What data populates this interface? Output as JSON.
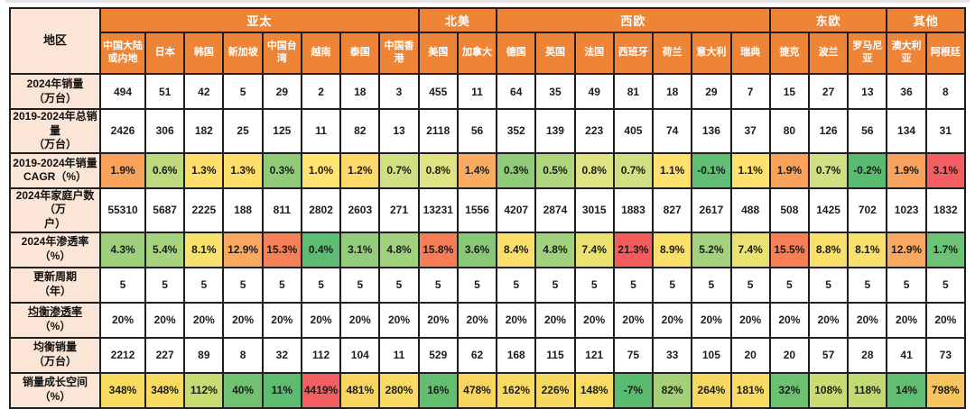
{
  "colors": {
    "header_bg": "#EE8435",
    "row_header_bg": "#FBE5D6",
    "border": "#1F1F1F",
    "header_text": "#FFFFFF",
    "cell_text": "#1C1C1C",
    "page_bg": "#FFFFFF"
  },
  "corner_label": "地区",
  "chart_data": {
    "type": "table",
    "title": "",
    "column_groups": [
      {
        "label": "亚太",
        "span": 8
      },
      {
        "label": "北美",
        "span": 2
      },
      {
        "label": "西欧",
        "span": 7
      },
      {
        "label": "东欧",
        "span": 3
      },
      {
        "label": "其他",
        "span": 2
      }
    ],
    "columns": [
      "中国大陆或内地",
      "日本",
      "韩国",
      "新加坡",
      "中国台湾",
      "越南",
      "泰国",
      "中国香港",
      "美国",
      "加拿大",
      "德国",
      "英国",
      "法国",
      "西班牙",
      "荷兰",
      "意大利",
      "瑞典",
      "捷克",
      "波兰",
      "罗马尼亚",
      "澳大利亚",
      "阿根廷"
    ],
    "rows": [
      {
        "label": [
          "2024年销量",
          "（万台）"
        ],
        "values": [
          "494",
          "51",
          "42",
          "5",
          "29",
          "2",
          "18",
          "3",
          "455",
          "11",
          "64",
          "35",
          "49",
          "81",
          "18",
          "29",
          "7",
          "15",
          "27",
          "13",
          "36",
          "8"
        ]
      },
      {
        "label": [
          "2019-2024年总销量",
          "（万台）"
        ],
        "values": [
          "2426",
          "306",
          "182",
          "25",
          "125",
          "11",
          "82",
          "13",
          "2118",
          "56",
          "352",
          "139",
          "223",
          "405",
          "74",
          "136",
          "37",
          "80",
          "126",
          "56",
          "134",
          "31"
        ]
      },
      {
        "label": [
          "2019-2024年销量",
          "CAGR（%）"
        ],
        "values": [
          "1.9%",
          "0.6%",
          "1.3%",
          "1.3%",
          "0.3%",
          "1.0%",
          "1.2%",
          "0.7%",
          "0.8%",
          "1.4%",
          "0.3%",
          "0.5%",
          "0.8%",
          "0.7%",
          "1.1%",
          "-0.1%",
          "1.1%",
          "1.9%",
          "0.7%",
          "-0.2%",
          "1.9%",
          "3.1%"
        ],
        "cell_colors": [
          "#F8A25B",
          "#BFD97E",
          "#FFDF6B",
          "#FFDF6B",
          "#8FCB79",
          "#FFE471",
          "#FDD96A",
          "#CFDF81",
          "#DFE384",
          "#F9AC60",
          "#8FCB79",
          "#AFD57D",
          "#DFE384",
          "#CFDF81",
          "#FFE26E",
          "#5FBE73",
          "#FFE26E",
          "#F8A25B",
          "#CFDF81",
          "#5ABC71",
          "#F8A25B",
          "#F25E62"
        ]
      },
      {
        "label": [
          "2024年家庭户数（万",
          "户）"
        ],
        "values": [
          "55310",
          "5687",
          "2225",
          "188",
          "811",
          "2802",
          "2603",
          "271",
          "13231",
          "1556",
          "4207",
          "2874",
          "3015",
          "1883",
          "827",
          "2617",
          "488",
          "508",
          "1425",
          "702",
          "1023",
          "1832"
        ]
      },
      {
        "label": [
          "2024年渗透率",
          "（%）"
        ],
        "values": [
          "4.3%",
          "5.4%",
          "8.1%",
          "12.9%",
          "15.3%",
          "0.4%",
          "3.1%",
          "4.8%",
          "15.8%",
          "3.6%",
          "8.4%",
          "4.8%",
          "7.4%",
          "21.3%",
          "8.9%",
          "5.2%",
          "7.4%",
          "15.5%",
          "8.8%",
          "8.1%",
          "12.9%",
          "1.7%"
        ],
        "cell_colors": [
          "#9ED07C",
          "#A8D37E",
          "#F8E16C",
          "#F9A95F",
          "#F68057",
          "#5CBC72",
          "#93CC7A",
          "#A0D17D",
          "#F67D56",
          "#88C877",
          "#FBDF6A",
          "#A0D17D",
          "#E9E170",
          "#F35B5C",
          "#FADF6A",
          "#A5D27E",
          "#E9E170",
          "#F67F57",
          "#FADF6A",
          "#F8E16C",
          "#F9A95F",
          "#6CC275"
        ]
      },
      {
        "label": [
          "更新周期",
          "（年）"
        ],
        "values": [
          "5",
          "5",
          "5",
          "5",
          "5",
          "5",
          "5",
          "5",
          "5",
          "5",
          "5",
          "5",
          "5",
          "5",
          "5",
          "5",
          "5",
          "5",
          "5",
          "5",
          "5",
          "5"
        ]
      },
      {
        "label": [
          "均衡渗透率",
          "（%）"
        ],
        "underline": true,
        "values": [
          "20%",
          "20%",
          "20%",
          "20%",
          "20%",
          "20%",
          "20%",
          "20%",
          "20%",
          "20%",
          "20%",
          "20%",
          "20%",
          "20%",
          "20%",
          "20%",
          "20%",
          "20%",
          "20%",
          "20%",
          "20%",
          "20%"
        ]
      },
      {
        "label": [
          "均衡销量",
          "（万台）"
        ],
        "values": [
          "2212",
          "227",
          "89",
          "8",
          "32",
          "112",
          "104",
          "11",
          "529",
          "62",
          "168",
          "115",
          "121",
          "75",
          "33",
          "105",
          "20",
          "20",
          "57",
          "28",
          "41",
          "73"
        ]
      },
      {
        "label": [
          "销量成长空间",
          "（%）"
        ],
        "values": [
          "348%",
          "348%",
          "112%",
          "40%",
          "11%",
          "4419%",
          "481%",
          "280%",
          "16%",
          "478%",
          "162%",
          "226%",
          "148%",
          "-7%",
          "82%",
          "264%",
          "181%",
          "32%",
          "108%",
          "118%",
          "14%",
          "798%"
        ],
        "cell_colors": [
          "#F8DC60",
          "#F8DC60",
          "#C6DB71",
          "#70C272",
          "#5DBD6F",
          "#F25E62",
          "#F7D55F",
          "#F9DA63",
          "#62BF70",
          "#F7D55F",
          "#F8DB62",
          "#F7D961",
          "#F8DC63",
          "#58BB6E",
          "#A5D077",
          "#F7D861",
          "#F8DB62",
          "#6CC171",
          "#C9DC72",
          "#C2DA74",
          "#5FBE6F",
          "#F8C45E"
        ]
      }
    ]
  }
}
